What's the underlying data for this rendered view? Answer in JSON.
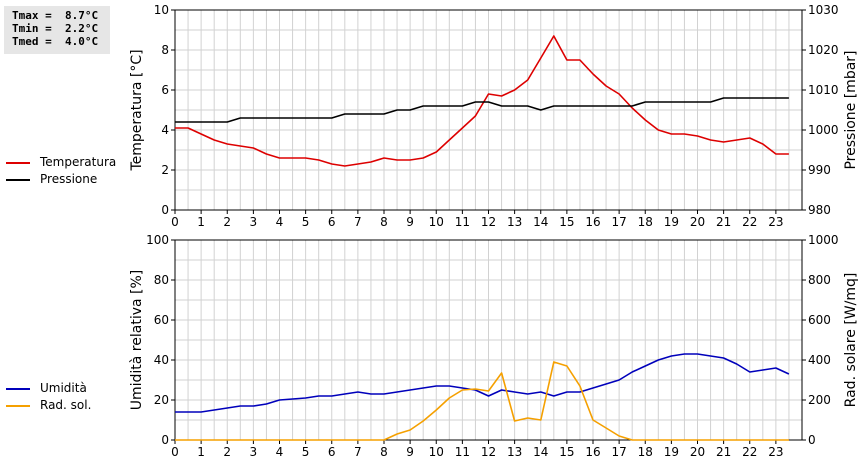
{
  "stats": {
    "lines": [
      "Tmax =  8.7°C",
      "Tmin =  2.2°C",
      "Tmed =  4.0°C"
    ]
  },
  "colors": {
    "temperature": "#dd0000",
    "pressure": "#000000",
    "humidity": "#0000bb",
    "radiation": "#f5a000",
    "grid": "#d2d2d2"
  },
  "chart_data": [
    {
      "type": "line",
      "xlabel": "",
      "x_ticks": [
        "0",
        "1",
        "2",
        "3",
        "4",
        "5",
        "6",
        "7",
        "8",
        "9",
        "10",
        "11",
        "12",
        "13",
        "14",
        "15",
        "16",
        "17",
        "18",
        "19",
        "20",
        "21",
        "22",
        "23"
      ],
      "xlim": [
        0,
        24
      ],
      "grid": true,
      "legend": "left",
      "y_left": {
        "label": "Temperatura [°C]",
        "ylim": [
          0,
          10
        ],
        "ticks": [
          "0",
          "2",
          "4",
          "6",
          "8",
          "10"
        ]
      },
      "y_right": {
        "label": "Pressione [mbar]",
        "ylim": [
          980,
          1030
        ],
        "ticks": [
          "980",
          "990",
          "1000",
          "1010",
          "1020",
          "1030"
        ]
      },
      "series": [
        {
          "name": "Temperatura",
          "axis": "left",
          "points": [
            [
              0,
              4.1
            ],
            [
              0.5,
              4.1
            ],
            [
              1,
              3.8
            ],
            [
              1.5,
              3.5
            ],
            [
              2,
              3.3
            ],
            [
              2.5,
              3.2
            ],
            [
              3,
              3.1
            ],
            [
              3.5,
              2.8
            ],
            [
              4,
              2.6
            ],
            [
              5,
              2.6
            ],
            [
              5.5,
              2.5
            ],
            [
              6,
              2.3
            ],
            [
              6.5,
              2.2
            ],
            [
              7,
              2.3
            ],
            [
              7.5,
              2.4
            ],
            [
              8,
              2.6
            ],
            [
              8.5,
              2.5
            ],
            [
              9,
              2.5
            ],
            [
              9.5,
              2.6
            ],
            [
              10,
              2.9
            ],
            [
              10.5,
              3.5
            ],
            [
              11,
              4.1
            ],
            [
              11.5,
              4.7
            ],
            [
              12,
              5.8
            ],
            [
              12.5,
              5.7
            ],
            [
              13,
              6.0
            ],
            [
              13.5,
              6.5
            ],
            [
              14,
              7.6
            ],
            [
              14.5,
              8.7
            ],
            [
              15,
              7.5
            ],
            [
              15.5,
              7.5
            ],
            [
              16,
              6.8
            ],
            [
              16.5,
              6.2
            ],
            [
              17,
              5.8
            ],
            [
              17.5,
              5.1
            ],
            [
              18,
              4.5
            ],
            [
              18.5,
              4.0
            ],
            [
              19,
              3.8
            ],
            [
              19.5,
              3.8
            ],
            [
              20,
              3.7
            ],
            [
              20.5,
              3.5
            ],
            [
              21,
              3.4
            ],
            [
              21.5,
              3.5
            ],
            [
              22,
              3.6
            ],
            [
              22.5,
              3.3
            ],
            [
              23,
              2.8
            ],
            [
              23.5,
              2.8
            ]
          ]
        },
        {
          "name": "Pressione",
          "axis": "right",
          "points": [
            [
              0,
              1002
            ],
            [
              0.5,
              1002
            ],
            [
              1,
              1002
            ],
            [
              1.5,
              1002
            ],
            [
              2,
              1002
            ],
            [
              2.5,
              1003
            ],
            [
              3,
              1003
            ],
            [
              3.5,
              1003
            ],
            [
              4,
              1003
            ],
            [
              4.5,
              1003
            ],
            [
              5,
              1003
            ],
            [
              5.5,
              1003
            ],
            [
              6,
              1003
            ],
            [
              6.5,
              1004
            ],
            [
              7,
              1004
            ],
            [
              7.5,
              1004
            ],
            [
              8,
              1004
            ],
            [
              8.5,
              1005
            ],
            [
              9,
              1005
            ],
            [
              9.5,
              1006
            ],
            [
              10,
              1006
            ],
            [
              10.5,
              1006
            ],
            [
              11,
              1006
            ],
            [
              11.5,
              1007
            ],
            [
              12,
              1007
            ],
            [
              12.5,
              1006
            ],
            [
              13,
              1006
            ],
            [
              13.5,
              1006
            ],
            [
              14,
              1005
            ],
            [
              14.5,
              1006
            ],
            [
              15,
              1006
            ],
            [
              15.5,
              1006
            ],
            [
              16,
              1006
            ],
            [
              16.5,
              1006
            ],
            [
              17,
              1006
            ],
            [
              17.5,
              1006
            ],
            [
              18,
              1007
            ],
            [
              18.5,
              1007
            ],
            [
              19,
              1007
            ],
            [
              19.5,
              1007
            ],
            [
              20,
              1007
            ],
            [
              20.5,
              1007
            ],
            [
              21,
              1008
            ],
            [
              21.5,
              1008
            ],
            [
              22,
              1008
            ],
            [
              22.5,
              1008
            ],
            [
              23,
              1008
            ],
            [
              23.5,
              1008
            ]
          ]
        }
      ]
    },
    {
      "type": "line",
      "xlabel": "",
      "x_ticks": [
        "0",
        "1",
        "2",
        "3",
        "4",
        "5",
        "6",
        "7",
        "8",
        "9",
        "10",
        "11",
        "12",
        "13",
        "14",
        "15",
        "16",
        "17",
        "18",
        "19",
        "20",
        "21",
        "22",
        "23"
      ],
      "xlim": [
        0,
        24
      ],
      "grid": true,
      "legend": "left",
      "y_left": {
        "label": "Umidità relativa [%]",
        "ylim": [
          0,
          100
        ],
        "ticks": [
          "0",
          "20",
          "40",
          "60",
          "80",
          "100"
        ]
      },
      "y_right": {
        "label": "Rad. solare [W/mq]",
        "ylim": [
          0,
          1000
        ],
        "ticks": [
          "0",
          "200",
          "400",
          "600",
          "800",
          "1000"
        ]
      },
      "series": [
        {
          "name": "Umidità",
          "axis": "left",
          "points": [
            [
              0,
              14
            ],
            [
              1,
              14
            ],
            [
              2,
              16
            ],
            [
              2.5,
              17
            ],
            [
              3,
              17
            ],
            [
              3.5,
              18
            ],
            [
              4,
              20
            ],
            [
              5,
              21
            ],
            [
              5.5,
              22
            ],
            [
              6,
              22
            ],
            [
              6.5,
              23
            ],
            [
              7,
              24
            ],
            [
              7.5,
              23
            ],
            [
              8,
              23
            ],
            [
              9,
              25
            ],
            [
              10,
              27
            ],
            [
              10.5,
              27
            ],
            [
              11,
              26
            ],
            [
              11.5,
              25
            ],
            [
              12,
              22
            ],
            [
              12.5,
              25
            ],
            [
              13,
              24
            ],
            [
              13.5,
              23
            ],
            [
              14,
              24
            ],
            [
              14.5,
              22
            ],
            [
              15,
              24
            ],
            [
              15.5,
              24
            ],
            [
              16,
              26
            ],
            [
              16.5,
              28
            ],
            [
              17,
              30
            ],
            [
              17.5,
              34
            ],
            [
              18,
              37
            ],
            [
              18.5,
              40
            ],
            [
              19,
              42
            ],
            [
              19.5,
              43
            ],
            [
              20,
              43
            ],
            [
              20.5,
              42
            ],
            [
              21,
              41
            ],
            [
              21.5,
              38
            ],
            [
              22,
              34
            ],
            [
              22.5,
              35
            ],
            [
              23,
              36
            ],
            [
              23.5,
              33
            ]
          ]
        },
        {
          "name": "Rad. sol.",
          "axis": "right",
          "points": [
            [
              0,
              0
            ],
            [
              0.5,
              0
            ],
            [
              1,
              0
            ],
            [
              2,
              0
            ],
            [
              3,
              0
            ],
            [
              4,
              0
            ],
            [
              5,
              0
            ],
            [
              6,
              0
            ],
            [
              7,
              0
            ],
            [
              8,
              0
            ],
            [
              8.5,
              30
            ],
            [
              9,
              50
            ],
            [
              9.5,
              95
            ],
            [
              10,
              150
            ],
            [
              10.5,
              210
            ],
            [
              11,
              250
            ],
            [
              11.5,
              255
            ],
            [
              12,
              245
            ],
            [
              12.5,
              335
            ],
            [
              13,
              95
            ],
            [
              13.5,
              110
            ],
            [
              14,
              100
            ],
            [
              14.5,
              390
            ],
            [
              15,
              370
            ],
            [
              15.5,
              270
            ],
            [
              16,
              100
            ],
            [
              16.5,
              60
            ],
            [
              17,
              20
            ],
            [
              17.5,
              0
            ],
            [
              18,
              0
            ],
            [
              19,
              0
            ],
            [
              20,
              0
            ],
            [
              21,
              0
            ],
            [
              22,
              0
            ],
            [
              23,
              0
            ],
            [
              23.5,
              0
            ]
          ]
        }
      ]
    }
  ]
}
